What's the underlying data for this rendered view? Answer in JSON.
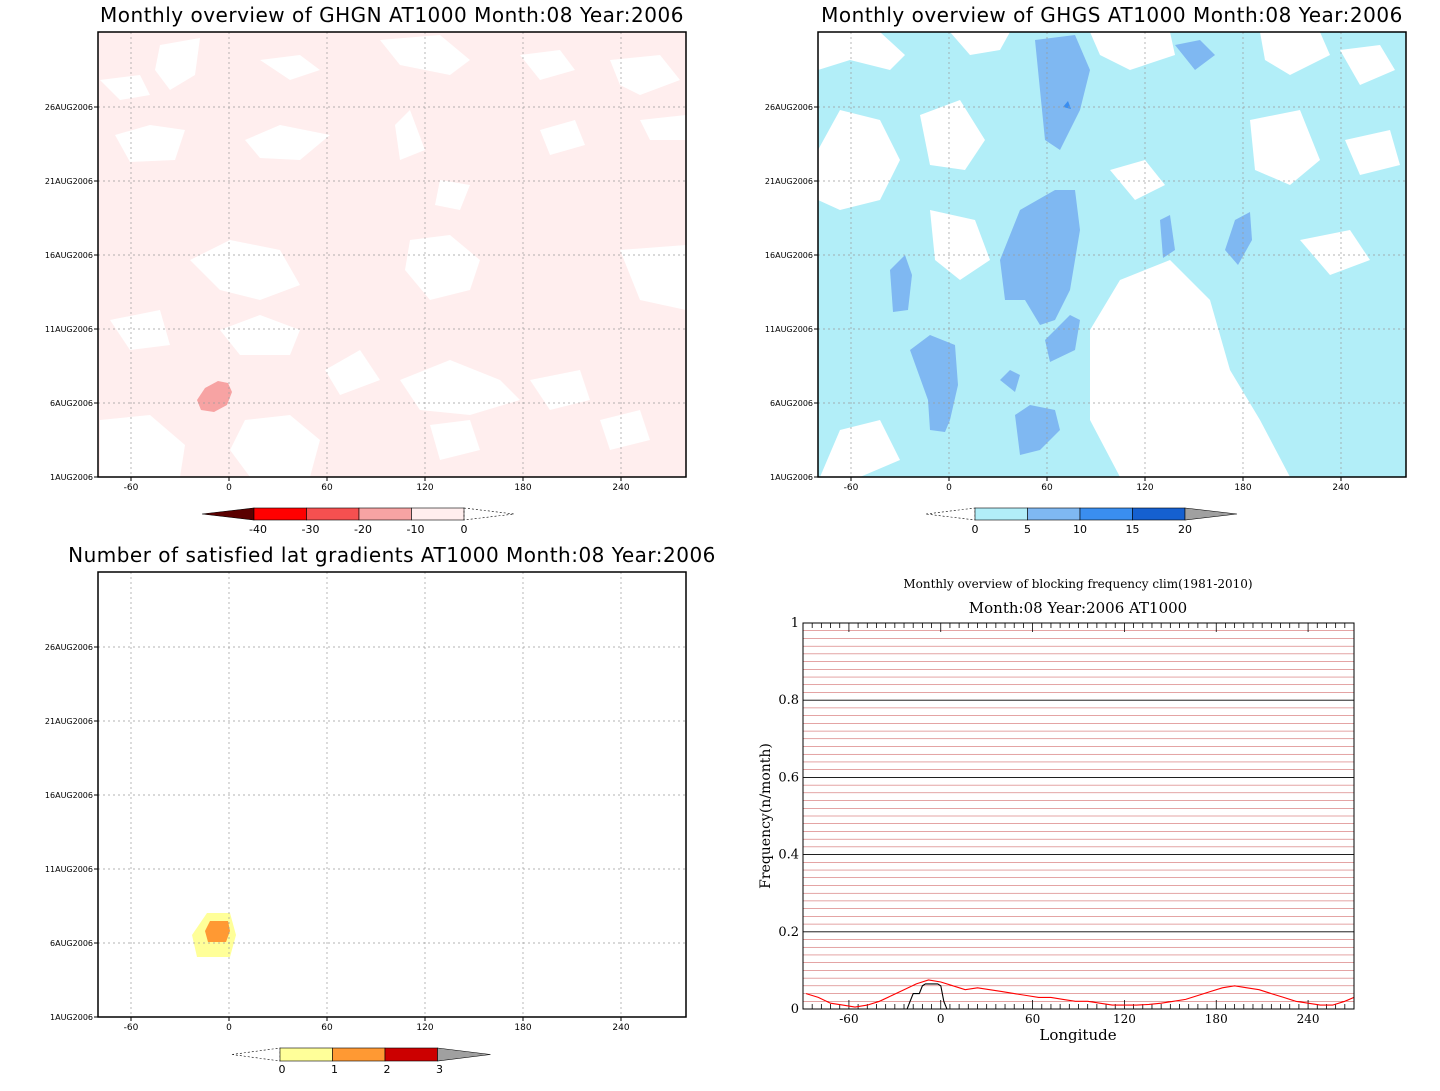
{
  "chart_data": [
    {
      "type": "heatmap",
      "title": "Monthly overview of GHGN AT1000 Month:08 Year:2006",
      "x_ticks": [
        "-60",
        "0",
        "60",
        "120",
        "180",
        "240"
      ],
      "y_ticks": [
        "1AUG2006",
        "6AUG2006",
        "11AUG2006",
        "16AUG2006",
        "21AUG2006",
        "26AUG2006"
      ],
      "colorbar": {
        "labels": [
          "-40",
          "-30",
          "-20",
          "-10",
          "0"
        ],
        "colors": [
          "#5a0000",
          "#ff0000",
          "#f55050",
          "#f7a3a3",
          "#ffeeee"
        ]
      }
    },
    {
      "type": "heatmap",
      "title": "Monthly overview of GHGS AT1000 Month:08 Year:2006",
      "x_ticks": [
        "-60",
        "0",
        "60",
        "120",
        "180",
        "240"
      ],
      "y_ticks": [
        "1AUG2006",
        "6AUG2006",
        "11AUG2006",
        "16AUG2006",
        "21AUG2006",
        "26AUG2006"
      ],
      "colorbar": {
        "labels": [
          "0",
          "5",
          "10",
          "15",
          "20"
        ],
        "colors": [
          "#b2eef8",
          "#7fb8f2",
          "#3a8ef0",
          "#1560d0",
          "#a0a0a0"
        ]
      }
    },
    {
      "type": "heatmap",
      "title": "Number of satisfied lat gradients AT1000 Month:08 Year:2006",
      "x_ticks": [
        "-60",
        "0",
        "60",
        "120",
        "180",
        "240"
      ],
      "y_ticks": [
        "1AUG2006",
        "6AUG2006",
        "11AUG2006",
        "16AUG2006",
        "21AUG2006",
        "26AUG2006"
      ],
      "colorbar": {
        "labels": [
          "0",
          "1",
          "2",
          "3"
        ],
        "colors": [
          "#ffff99",
          "#ff9933",
          "#cc0000",
          "#a0a0a0"
        ]
      }
    },
    {
      "type": "line",
      "title": "Monthly overview of blocking frequency clim(1981-2010)",
      "subtitle": "Month:08 Year:2006  AT1000",
      "xlabel": "Longitude",
      "ylabel": "Frequency(n/month)",
      "xlim": [
        -90,
        270
      ],
      "ylim": [
        0,
        1
      ],
      "x_ticks": [
        "-60",
        "0",
        "60",
        "120",
        "180",
        "240"
      ],
      "y_ticks": [
        "0",
        "0.2",
        "0.4",
        "0.6",
        "0.8",
        "1"
      ],
      "series": [
        {
          "color": "#ff0000",
          "x": [
            -88,
            -80,
            -72,
            -64,
            -56,
            -48,
            -40,
            -32,
            -24,
            -16,
            -8,
            0,
            8,
            16,
            24,
            32,
            40,
            48,
            56,
            64,
            72,
            80,
            88,
            96,
            104,
            112,
            120,
            128,
            136,
            144,
            152,
            160,
            168,
            176,
            184,
            192,
            200,
            208,
            216,
            224,
            232,
            240,
            248,
            256,
            264,
            270
          ],
          "y": [
            0.04,
            0.03,
            0.015,
            0.01,
            0.005,
            0.01,
            0.02,
            0.035,
            0.05,
            0.065,
            0.075,
            0.07,
            0.06,
            0.05,
            0.055,
            0.05,
            0.045,
            0.04,
            0.035,
            0.03,
            0.03,
            0.025,
            0.02,
            0.02,
            0.015,
            0.01,
            0.01,
            0.01,
            0.012,
            0.015,
            0.02,
            0.025,
            0.035,
            0.045,
            0.055,
            0.06,
            0.055,
            0.05,
            0.04,
            0.03,
            0.02,
            0.015,
            0.01,
            0.01,
            0.02,
            0.03
          ]
        },
        {
          "color": "#000000",
          "x": [
            -90,
            -22,
            -20,
            -18,
            -14,
            -12,
            -10,
            -6,
            -4,
            -2,
            0,
            2,
            4,
            270
          ],
          "y": [
            0,
            0,
            0.02,
            0.04,
            0.04,
            0.06,
            0.065,
            0.065,
            0.065,
            0.065,
            0.06,
            0.02,
            0,
            0
          ]
        }
      ]
    }
  ]
}
